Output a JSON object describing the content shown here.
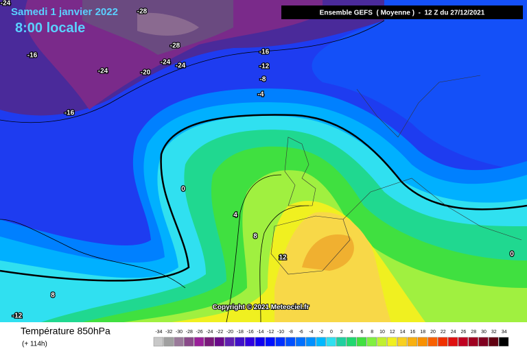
{
  "header": {
    "date": "Samedi 1 janvier 2022",
    "time": "8:00 locale",
    "model": "Ensemble GEFS  ( Moyenne )  -  12 Z du 27/12/2021",
    "copyright": "Copyright © 2021 Meteociel.fr"
  },
  "map": {
    "contour_labels": [
      -24,
      -28,
      -28,
      -16,
      -24,
      -20,
      -24,
      -24,
      -16,
      -12,
      -8,
      -4,
      -16,
      0,
      4,
      8,
      12,
      8,
      -12,
      0
    ]
  },
  "footer": {
    "title": "Température 850hPa",
    "lead": "(+ 114h)",
    "scale": [
      {
        "value": -34,
        "color": "#c8c8c8"
      },
      {
        "value": -32,
        "color": "#a0a0a0"
      },
      {
        "value": -30,
        "color": "#9a7a9a"
      },
      {
        "value": -28,
        "color": "#8a4a8a"
      },
      {
        "value": -26,
        "color": "#9a209a"
      },
      {
        "value": -24,
        "color": "#7a1a7a"
      },
      {
        "value": -22,
        "color": "#6a0a8a"
      },
      {
        "value": -20,
        "color": "#6020b0"
      },
      {
        "value": -18,
        "color": "#4010c8"
      },
      {
        "value": -16,
        "color": "#3000e0"
      },
      {
        "value": -14,
        "color": "#1000f0"
      },
      {
        "value": -12,
        "color": "#0010ff"
      },
      {
        "value": -10,
        "color": "#0030ff"
      },
      {
        "value": -8,
        "color": "#0050ff"
      },
      {
        "value": -6,
        "color": "#0070ff"
      },
      {
        "value": -4,
        "color": "#0090ff"
      },
      {
        "value": -2,
        "color": "#00b8ff"
      },
      {
        "value": 0,
        "color": "#30e0f0"
      },
      {
        "value": 2,
        "color": "#20d0a0"
      },
      {
        "value": 4,
        "color": "#20d870"
      },
      {
        "value": 6,
        "color": "#40e040"
      },
      {
        "value": 8,
        "color": "#80f040"
      },
      {
        "value": 10,
        "color": "#c0f030"
      },
      {
        "value": 12,
        "color": "#f0f020"
      },
      {
        "value": 14,
        "color": "#f8d020"
      },
      {
        "value": 16,
        "color": "#f8b010"
      },
      {
        "value": 18,
        "color": "#f89000"
      },
      {
        "value": 20,
        "color": "#f86000"
      },
      {
        "value": 22,
        "color": "#f03000"
      },
      {
        "value": 24,
        "color": "#e01010"
      },
      {
        "value": 26,
        "color": "#c00020"
      },
      {
        "value": 28,
        "color": "#a00020"
      },
      {
        "value": 30,
        "color": "#800020"
      },
      {
        "value": 32,
        "color": "#600010"
      },
      {
        "value": 34,
        "color": "#000000"
      }
    ]
  }
}
